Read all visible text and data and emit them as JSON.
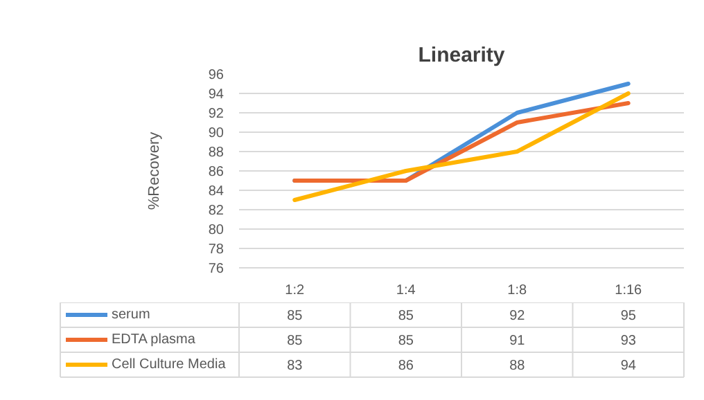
{
  "chart_data": {
    "type": "line",
    "title": "Linearity",
    "ylabel": "%Recovery",
    "categories": [
      "1:2",
      "1:4",
      "1:8",
      "1:16"
    ],
    "series": [
      {
        "name": "serum",
        "color": "#4a90d9",
        "values": [
          85,
          85,
          92,
          95
        ]
      },
      {
        "name": "EDTA plasma",
        "color": "#ee6a2e",
        "values": [
          85,
          85,
          91,
          93
        ]
      },
      {
        "name": "Cell Culture Media",
        "color": "#ffb400",
        "values": [
          83,
          86,
          88,
          94
        ]
      }
    ],
    "ylim": [
      76,
      96
    ],
    "yticks": [
      76,
      78,
      80,
      82,
      84,
      86,
      88,
      90,
      92,
      94,
      96
    ],
    "grid": "y",
    "legend": "bottom",
    "data_labels": true
  }
}
